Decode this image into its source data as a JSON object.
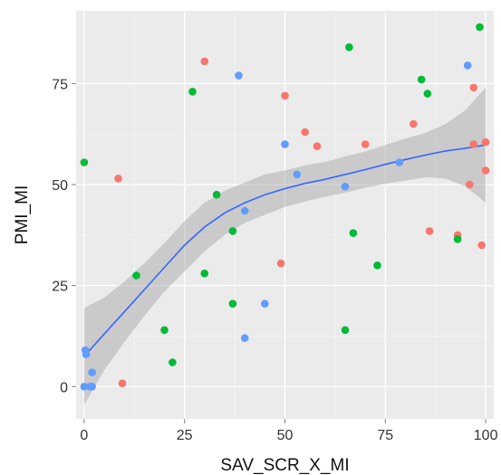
{
  "chart_data": {
    "type": "scatter",
    "xlabel": "SAV_SCR_X_MI",
    "ylabel": "PMI_MI",
    "xlim": [
      -2,
      102
    ],
    "ylim": [
      -8,
      93
    ],
    "x_ticks": [
      0,
      25,
      50,
      75,
      100
    ],
    "y_ticks": [
      0,
      25,
      50,
      75
    ],
    "grid": true,
    "legend": "none",
    "colors": {
      "panel_bg": "#EBEBEB",
      "grid_major": "#FFFFFF",
      "grid_minor": "#F5F5F5",
      "red": "#F8766D",
      "green": "#00BA38",
      "blue": "#619CFF",
      "smooth_line": "#3366FF",
      "ribbon": "#999999"
    },
    "series": [
      {
        "color": "red",
        "points": [
          [
            8.5,
            51.5
          ],
          [
            9.5,
            0.8
          ],
          [
            30,
            80.5
          ],
          [
            49,
            30.5
          ],
          [
            50,
            72
          ],
          [
            55,
            63
          ],
          [
            58,
            59.5
          ],
          [
            70,
            60
          ],
          [
            82,
            65
          ],
          [
            86,
            38.5
          ],
          [
            93,
            37.5
          ],
          [
            96,
            50
          ],
          [
            97,
            74
          ],
          [
            97,
            60
          ],
          [
            99,
            35
          ],
          [
            100,
            53.5
          ],
          [
            100,
            60.5
          ]
        ]
      },
      {
        "color": "green",
        "points": [
          [
            0,
            55.5
          ],
          [
            13,
            27.5
          ],
          [
            20,
            14
          ],
          [
            22,
            6
          ],
          [
            27,
            73
          ],
          [
            30,
            28
          ],
          [
            33,
            47.5
          ],
          [
            37,
            20.5
          ],
          [
            37,
            38.5
          ],
          [
            65,
            14
          ],
          [
            66,
            84
          ],
          [
            67,
            38
          ],
          [
            73,
            30
          ],
          [
            84,
            76
          ],
          [
            85.5,
            72.5
          ],
          [
            93,
            36.5
          ],
          [
            98.5,
            89
          ]
        ]
      },
      {
        "color": "blue",
        "points": [
          [
            0,
            0
          ],
          [
            0.3,
            9
          ],
          [
            0.5,
            8
          ],
          [
            1.5,
            0
          ],
          [
            2,
            3.5
          ],
          [
            2,
            0
          ],
          [
            40,
            12
          ],
          [
            38.5,
            77
          ],
          [
            40,
            43.5
          ],
          [
            45,
            20.5
          ],
          [
            50,
            60
          ],
          [
            53,
            52.5
          ],
          [
            65,
            49.5
          ],
          [
            78.5,
            55.5
          ],
          [
            95.5,
            79.5
          ]
        ]
      }
    ],
    "smooth": {
      "method": "loess",
      "x": [
        0,
        5,
        10,
        15,
        20,
        25,
        30,
        35,
        40,
        45,
        50,
        55,
        60,
        65,
        70,
        75,
        80,
        85,
        90,
        95,
        100
      ],
      "y": [
        7.5,
        13,
        18.5,
        24,
        29.5,
        35,
        39.5,
        43,
        45.5,
        47.5,
        49,
        50.3,
        51.3,
        52.5,
        53.7,
        55,
        56.2,
        57.3,
        58.3,
        59,
        59.8
      ],
      "ymin": [
        -4.5,
        4,
        11,
        17.5,
        23.5,
        28.5,
        33.5,
        37.5,
        40.5,
        42.5,
        44.5,
        45.8,
        47,
        48,
        49.2,
        50.2,
        51,
        51.8,
        51.5,
        49.5,
        45.5
      ],
      "ymax": [
        19.5,
        22,
        26,
        30.5,
        35.5,
        41,
        45.5,
        48.5,
        50.5,
        52.5,
        53.5,
        54.8,
        55.6,
        57,
        58.2,
        59.8,
        61.4,
        62.8,
        65,
        68.5,
        74
      ]
    }
  }
}
